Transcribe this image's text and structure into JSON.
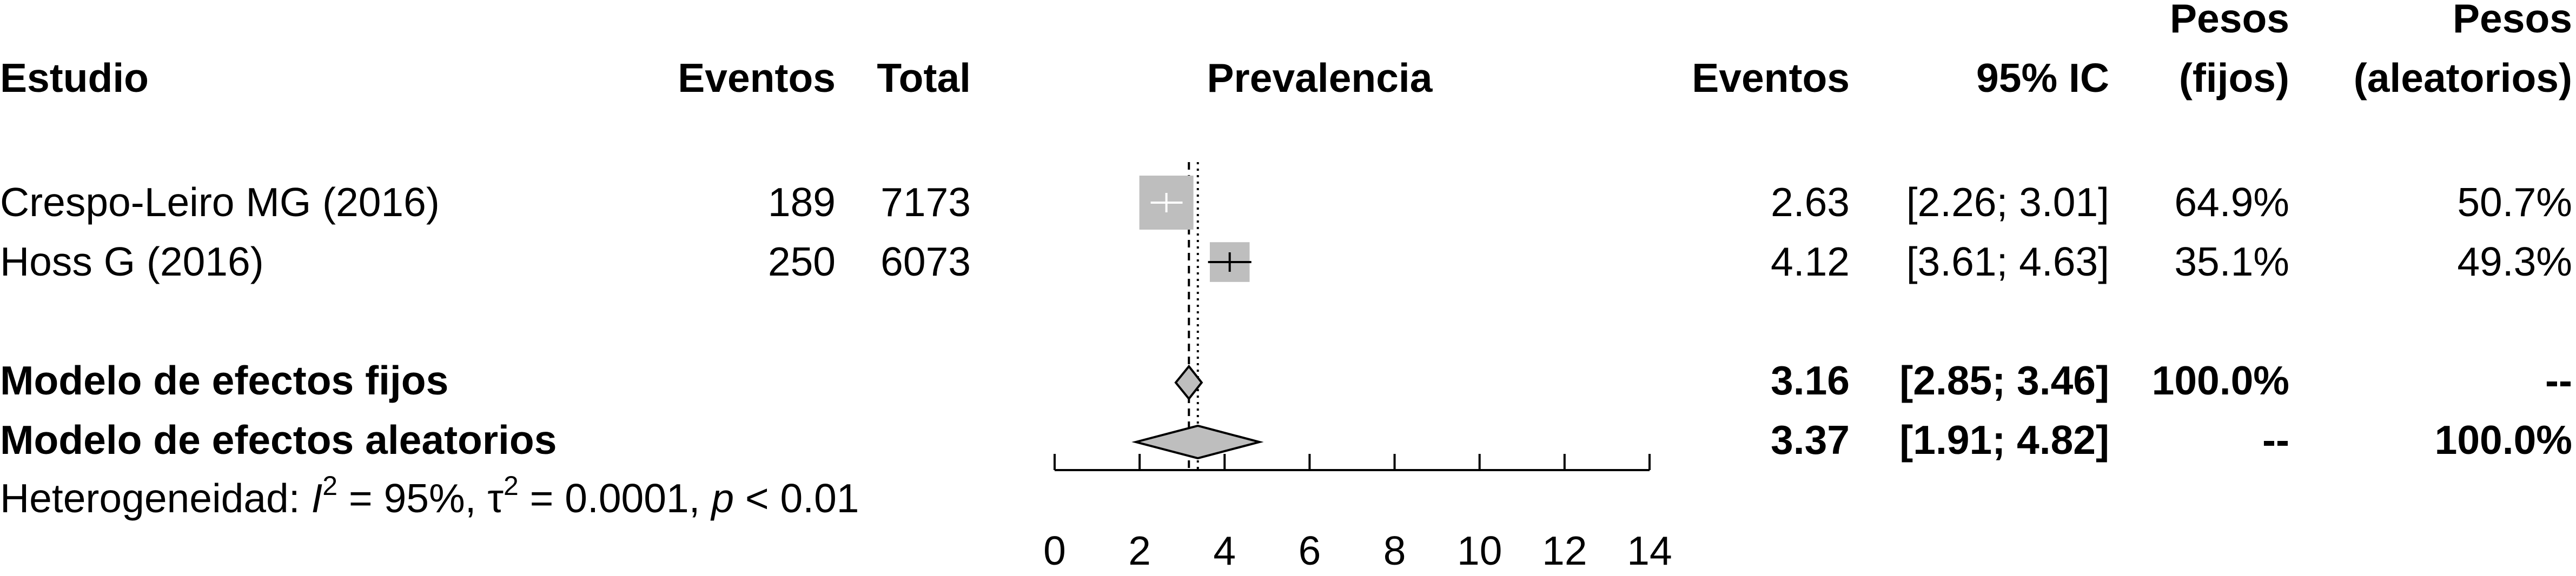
{
  "chart_data": {
    "type": "forest",
    "headers": {
      "study": "Estudio",
      "events": "Eventos",
      "total": "Total",
      "prevalence": "Prevalencia",
      "effect": "Eventos",
      "ci": "95% IC",
      "weight_fixed_line1": "Pesos",
      "weight_fixed_line2": "(fijos)",
      "weight_random_line1": "Pesos",
      "weight_random_line2": "(aleatorios)"
    },
    "studies": [
      {
        "label": "Crespo-Leiro MG (2016)",
        "events": "189",
        "total": "7173",
        "estimate": 2.63,
        "lower": 2.26,
        "upper": 3.01,
        "estimate_text": "2.63",
        "ci_text": "[2.26; 3.01]",
        "weight_fixed_text": "64.9%",
        "weight_random_text": "50.7%",
        "weight_fixed": 64.9
      },
      {
        "label": "Hoss G (2016)",
        "events": "250",
        "total": "6073",
        "estimate": 4.12,
        "lower": 3.61,
        "upper": 4.63,
        "estimate_text": "4.12",
        "ci_text": "[3.61; 4.63]",
        "weight_fixed_text": "35.1%",
        "weight_random_text": "49.3%",
        "weight_fixed": 35.1
      }
    ],
    "fixed_model": {
      "label": "Modelo de efectos fijos",
      "estimate": 3.16,
      "lower": 2.85,
      "upper": 3.46,
      "estimate_text": "3.16",
      "ci_text": "[2.85; 3.46]",
      "weight_fixed_text": "100.0%",
      "weight_random_text": "--"
    },
    "random_model": {
      "label": "Modelo de efectos aleatorios",
      "estimate": 3.37,
      "lower": 1.91,
      "upper": 4.82,
      "estimate_text": "3.37",
      "ci_text": "[1.91; 4.82]",
      "weight_fixed_text": "--",
      "weight_random_text": "100.0%"
    },
    "heterogeneity": {
      "prefix": "Heterogeneidad: ",
      "i2_symbol": "I",
      "sup2": "2",
      "i2_value": " = 95%, ",
      "tau_symbol": "τ",
      "tau_value": " = 0.0001, ",
      "p_symbol": "p",
      "p_value": " < 0.01"
    },
    "x_axis": {
      "range": [
        0,
        14
      ],
      "ticks": [
        0,
        2,
        4,
        6,
        8,
        10,
        12,
        14
      ],
      "tick_labels": [
        "0",
        "2",
        "4",
        "6",
        "8",
        "10",
        "12",
        "14"
      ]
    },
    "colors": {
      "square": "#bebebe",
      "diamond": "#bebebe",
      "line": "#000000"
    }
  }
}
